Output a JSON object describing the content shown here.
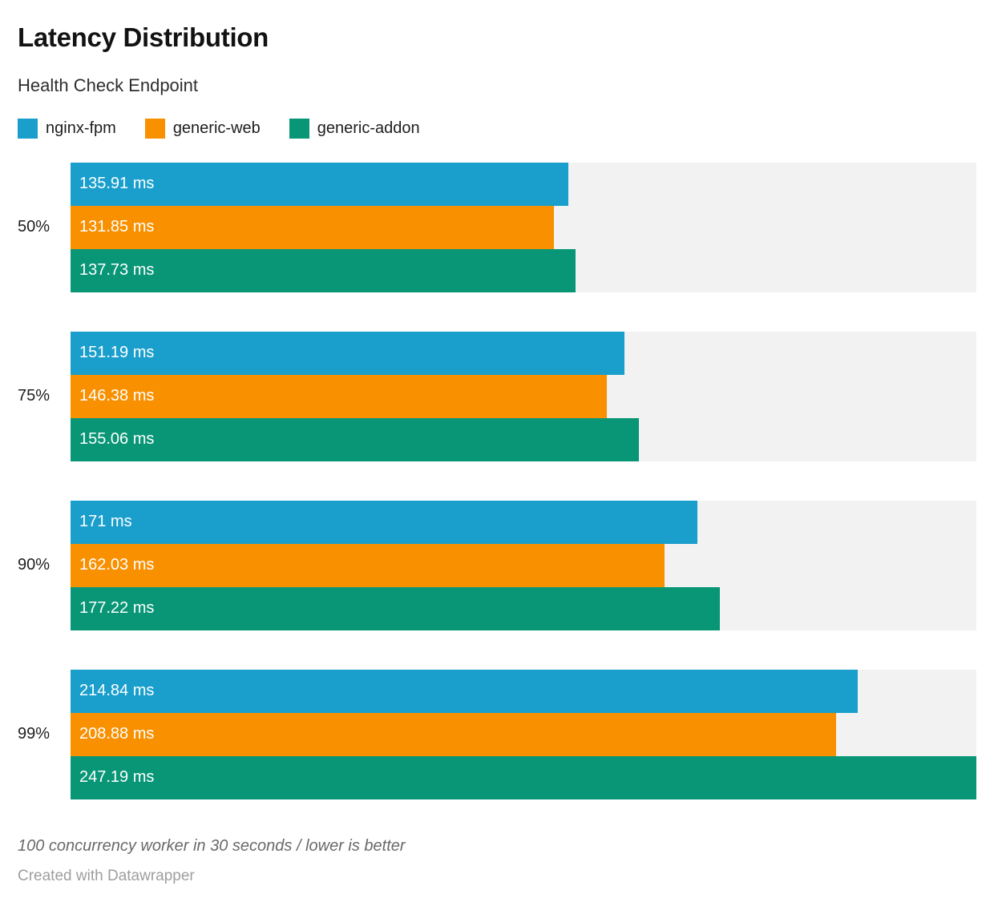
{
  "chart_data": {
    "type": "bar",
    "orientation": "horizontal",
    "title": "Latency Distribution",
    "subtitle": "Health Check Endpoint",
    "unit": "ms",
    "categories": [
      "50%",
      "75%",
      "90%",
      "99%"
    ],
    "series": [
      {
        "name": "nginx-fpm",
        "color": "#1A9FCD",
        "values": [
          135.91,
          151.19,
          171,
          214.84
        ],
        "labels": [
          "135.91 ms",
          "151.19 ms",
          "171 ms",
          "214.84 ms"
        ]
      },
      {
        "name": "generic-web",
        "color": "#F89000",
        "values": [
          131.85,
          146.38,
          162.03,
          208.88
        ],
        "labels": [
          "131.85 ms",
          "146.38 ms",
          "162.03 ms",
          "208.88 ms"
        ]
      },
      {
        "name": "generic-addon",
        "color": "#089677",
        "values": [
          137.73,
          155.06,
          177.22,
          247.19
        ],
        "labels": [
          "137.73 ms",
          "155.06 ms",
          "177.22 ms",
          "247.19 ms"
        ]
      }
    ],
    "axis_min": 0,
    "axis_max": 247.19,
    "track_color": "#F2F2F2",
    "legend_position": "top",
    "grid": false,
    "value_labels": "inside-start"
  },
  "footer": {
    "note": "100 concurrency worker in 30 seconds / lower is better",
    "attribution": "Created with Datawrapper"
  }
}
